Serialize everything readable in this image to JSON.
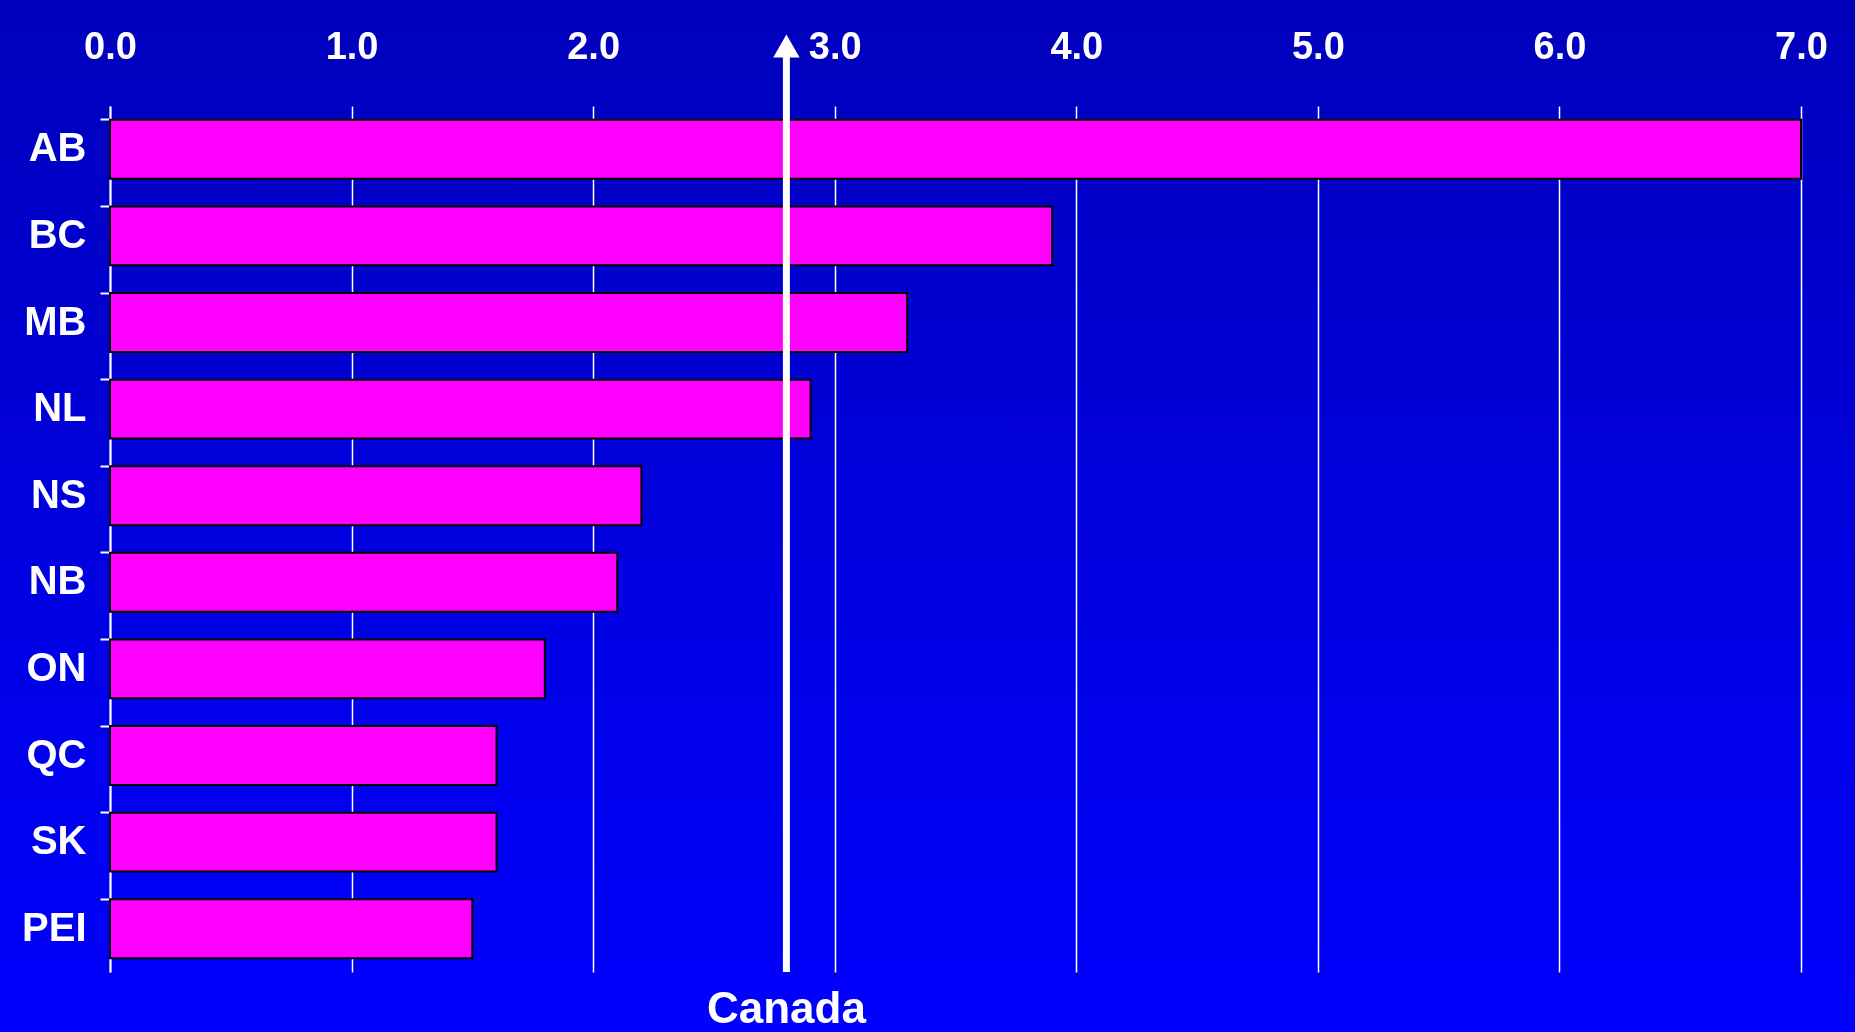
{
  "chart_data": {
    "type": "bar",
    "orientation": "horizontal",
    "categories": [
      "AB",
      "BC",
      "MB",
      "NL",
      "NS",
      "NB",
      "ON",
      "QC",
      "SK",
      "PEI"
    ],
    "values": [
      7.0,
      3.9,
      3.3,
      2.9,
      2.2,
      2.1,
      1.8,
      1.6,
      1.6,
      1.5
    ],
    "color": "#ff00ff",
    "xlim": [
      0,
      7
    ],
    "xticks": [
      {
        "value": 0,
        "label": "0.0"
      },
      {
        "value": 1,
        "label": "1.0"
      },
      {
        "value": 2,
        "label": "2.0"
      },
      {
        "value": 3,
        "label": "3.0"
      },
      {
        "value": 4,
        "label": "4.0"
      },
      {
        "value": 5,
        "label": "5.0"
      },
      {
        "value": 6,
        "label": "6.0"
      },
      {
        "value": 7,
        "label": "7.0"
      }
    ],
    "grid": "x",
    "ref_lines": [
      {
        "axis": "x",
        "value": 2.8,
        "label": "Canada",
        "color": "#ffffff"
      }
    ]
  }
}
